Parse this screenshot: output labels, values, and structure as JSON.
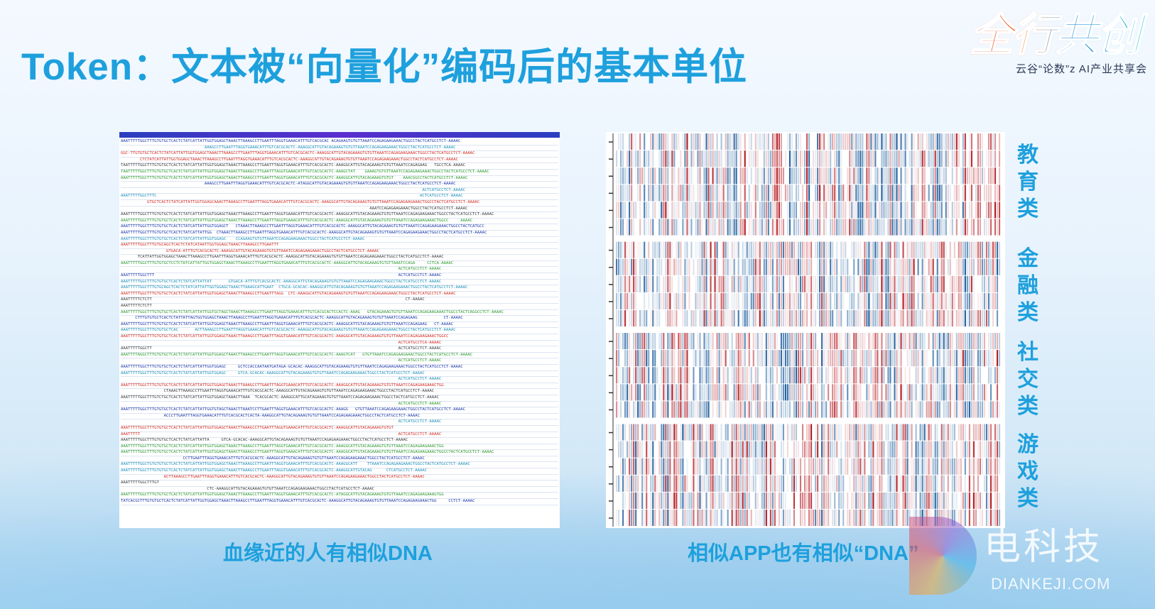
{
  "slide": {
    "title": "Token：文本被“向量化”编码后的基本单位"
  },
  "logo": {
    "main": "全行共创",
    "sub": "云谷“论数”z AI产业共享会"
  },
  "left_panel": {
    "caption": "血缘近的人有相似DNA",
    "sequence_lines": [
      "AAATTTTTGGCTTTGTGTGCTCACTCTATCATTATTGGTGGAGCTAAACTTAAAGCCTTGAATTTAGGTGAAACATTTGTCACGCAC ACAGAAGTGTGTTAAATCCAGAGAAGAAACTGGCCTACTCATGCCTCT-AAAAC",
      "                                   AAAGCCTTGAATTTAGGTGAAACATTTGTCACGCACTC-AAAGGCATTGTACAGAAAGTGTGTTAAATCCAGAGAAGAAACTGGCCTACTCATGCCTCT-AAAAC",
      "GGC-TTGTGTGCTCACTCTATCATTATTGGTGGAGCTAAACTTAAAGCCTTGAATTTAGGTGAAACATTTGTCACGCACTC-AAAGGCATTGTACAGAAAGTGTGTTAAATCCAGAGAAGAAACTGGCCTACTCATGCCTCT-AAAAC",
      "        CTCTATCATTATTGGTGGAGCTAAACTTAAAGCCTTGAATTTAGGTGAAACATTTGTCACGCACTC-AAAGGCATTGTACAGAAAGTGTGTTAAATCCAGAGAAGAAACTGGCCTACTCATGCCTCT-AAAAC",
      "TAATTTTTGGCTTTGTGTGCTCACTCTATCATTATTGGTGGAGCTAAACTTAAAGCCTTGAATTTAGGTGAAACATTTGTCACGCACTC-AAAGGCATTGTACAGAAAGTGTGTTAAATCCAGAGAAG   TGCCTCA-AAAAC",
      "TAATTTTTGGCTTTGTGTGCTCACTCTATCATTATTGGTGGAGCTAAACTTAAAGCCTTGAATTTAGGTGAAACATTTGTCACGCACTC-AAAGCTAT    GAAAGTGTGTTAAATCCAGAGAAGAAACTGGCCTACTCATGCCTCT-AAAAC",
      "AAATTTTTGGCTTTGTGTGCTCACTCTATCATTATTGGTGGAGCTAAACTTAAAGCCTTGAATTTAGGTGAAACATTTGTCACGCACTC-AAAGGCATTGTACAGAAAGTGTGT    AAACGGCCTACTCATGCCTCT-AAAAC",
      "                                   AAAGCCTTGAATTTAGGTGAAACATTTGTCACGCACTC-ATAGGCATTGTACAGAAAGTGTGTTAAATCCAGAGAAGAAACTGGCCTACTCATGCCTCT-AAAAC",
      "                                                                                                                              ACTCATGCCTCT-AAAAC",
      "AAATTTTTGGCTTTC                                                                                                              ACTCATGCCTCT-AAAAC",
      "           GTGCTCACTCTATCATTATTGGTGGAGCAAACTTAAAGCCTTGAATTTAGGTGAAACATTTGTCACGCACTC-AAAGGCATTGTACAGAAAGTGTGTTAAATCCAGAGAAGAAACTGGCCTACTCATGCCTCT-AAAAC",
      "                                                                                                        AAATCCAGAGAAGAAACTGGCCTACTCATGCCTCT-AAAAC",
      "AAATTTTTGGCTTTGTGTGCTCACTCTATCATTATTGGTGGAGCTAAACTTAAAGCCTTGAATTTAGGTGAAACATTTGTCACGCACTC-AAAGGCATTGTACAGAAAGTGTGTTAAATCCAGAGAAGAAACTGGCCTACTCATGCCTCT-AAAAC",
      "AAATTTTTGGCTTTGTGTGCTCACTCTATCATTATTGGTGGAGCTAAACTTAAAGCCTTGAATTTAGGTGAAACATTTGTCACGCACTC-AAAGGCATTGTACAGAAAGTGTGTTAAATCCAGAGAAGAAACTGGCC     AAAAC",
      "AAATTTTTGGCTTTGTGTGCTCACTCTATCATTATTGGTGGAGCT   CTAAACTTAAAGCCTTGAATTTAGGTGAAACATTTGTCACGCACTC-AAAGGCATTGTACAGAAAGTGTGTTAAATCCAGAGAAGAAACTGGCCTACTCATGCC",
      "AAATTTTTGGCTTTGTGTGCTCACTCTATCATTATTGG  CTAAACTTAAAGCCTTGAATTTAGGTGAAACATTTGTCACGCACTC-AAAGGCATTGTACAGAAAGTGTGTTAAATCCAGAGAAGAAACTGGCCTACTCATGCCTCT-AAAAC",
      "AAATTTTTGGCTTTGTGTGCTCACTCTATCATTATTGGTGGAGC    CCAGAAGTGTGTTAAATCCAGAGAAGAAACTGGCCTACTCATGCCTCT-AAAAC",
      "AAATTTTTGGCTTTGTGCAGCTCACTCTATCATAATTGGTGGAGCTAAACTTAAAGCCTTGAATTT",
      "                   GTGACA-ATTTGTCACGCACTC-AAAGGCATTGTACAGAAAGTGTGTTAAATCCAGAGAAGAAACTGGCCTACTCATGCCTCT-AAAAC",
      "       TCATTATTGGTGGAGCTAAACTTAAAGCCTTGAATTTAGGTGAAACATTTGTCACGCACTC-AAAGGCATTGTACAGAAAGTGTGTTAAATCCAGAGAAGAAACTGGCCTACTCATGCCTCT-AAAAC",
      "AAATTTTTGGCTTTGTGTGCTCCTCTATCATTATTGGTGGAGCTAAACTTAAAGCCTTGAATTTAGGTGAAACATTTGTCACGCACTC-AAAGGCATTGTACAGAAAGTGTGTTAAATCCAGA     CCTCA-AAAAC",
      "                                                                                                                    ACTCATGCCTCT-AAAAC",
      "AAATTTTTGGCTTT                                                                                                      ACTCATGCCTCT-AAAAC",
      "AAATTTTTGGCTTTGTGTGCTCACTCTATCATTATTAT       GTGACA-ATTTGTCACGCACTC-AAAGGCATTGTACAGAAAGTGTGTTAAATCCAGAGAAGAAACTGGCCTACTCATGCCTCT-AAAAC",
      "AAATTTTTGGCTTTGTGCAGCTCACTCTATCATTATTGGTGGAGCTAAACTTAAAGCATTGAAT  CTGCA-GCACAC-AAAGGCATTGTACAGAAAGTGTGTTAAATCCAGAGAAGAAACTGGCCTACTCATGCCTCT-AAAAC",
      "AAATTTTTGGCTTTGTGTGCTCACTCTATCATTATTGGTGGAGCTAAACTTAAAGCCTTGAATTTAGG  CTC-AAAGGCATTGTACAGAAAGTGTGTTAAATCCAGAGAAGAAACTGGCCTACTCATGCCTCT-AAAAC",
      "AAATTTTTCTCTT                                                                                                          CT-AAAAC",
      "AAATTTTTCTCTT",
      "AAATTTTTGGCTTTGTGTGCTCACTCTATCATTATTGGTGCTAGCTAAACTTAAAGCCTTGAATTTAGGTGAAACATTTGTCACGCACTCCACTC-AAAG   GTACAGAAAGTGTGTTAAATCCAGAGAAGAAACTGGCCTACTCAGGCCTCT-AAAAC",
      "      CTTTGTGTGCTCACTCTATTATTAGTGGTGGAGCTAAACTTAAAGCCTTGAATTTAGGTGAAACATTTGTCACGCACTC-AAAGGCATTGTACAGAAAGTGTGTTAAATCCAGAGAAG           CT-AAAAC",
      "AAATTTTTGGCTTTGTGTGCTCACTCTATCATTATTGGTGGAGCTAAACTTAAAGCCTTGAATTTAGGTGAAACATTTGTCACGCACTC-AAAGGCATTGTACAGAAAGTGTGTTAAATCCAGAGAAG   CT-AAAAC",
      "AAATTTTTGGCTTTGTGTGCTCAC       ACTTAAAGCCTTGAATTTAGGTGAAACATTTGTCACGCACTC-AAAGGCATTGTACAGAAAGTGTGTTAAATCCAGAGAAGAAACTGGCCTACTCATGCCTCT-AAAAC",
      "AAATTTTTGGCTTTGTGTGCTCACTCTATCATTATTGGTGGAGCTAAACTTAAAGCCTTGAATTTAGGTGAAACATTTGTCACGCACTC-AAAGGCATTGTACAGAAAGTGTGTTAAATCCAGAGAAGAAACTGGCC",
      "                                                                                                                    ACTCATGCCTCA-AAAAC",
      "AAATTTTTGGCTT                                                                                                       ACTCATGCCTCT-AAAAC",
      "AAATTTTAGGCTTTGTGTGCTCACTCTATCATTATTGGTGGAGCTAAACTTAAAGCCTTGAATTTAGGTGAAACATTTGTCACGCACTC-AAAGTCAT   GTGTTAAATCCAGAGAAGAAACTGGCCTACTCATGCCTCT-AAAAC",
      "                                                                                                                    ACTCATGCCTCT-AAAAC",
      "AAATTTTTGGCTTTGTGTGCTCACTCTATCATTATTGGTGGAGC     GCTCCACCAATAATGATAGA-GCACAC-AAAGGCATTGTACAGAAAGTGTGTTAAATCCAGAGAAGAAACTGGCCTACTCATGCCTCT-AAAAC",
      "AAATTTTTGGCTTTGTGTGCTCACTCTATCATTATTGGTGGAGC     GTCA-GCACAC-AAAGGCATTGTACAGAAAGTGTGTTAAATCCAGAGAAGAAACTGGCCTACTCATGCCTCT-AAAAC",
      "                                                                                                                    ACTCATGCCTCT-AAAAC",
      "AAATTTTTGGCTTTGTGTGCTCACTCTATCATTATTGGTGGAGCTAAACTTAAAGCCTTGAATTTAGGTGAAACATTTGTCACGCACTC-AAAGGCATTGTACAGAAAGTGTGTTAAATCCAGAGAAGAAACTGG",
      "                  CTAAACTTAAAGCCTTGAATTTAGGTGAAACATTTGTCACGCACTC-AAAGGCATTGTACAGAAAGTGTGTTAAATCCAGAGAAGAAACTGGCCTACTCATGCCTCT-AAAAC",
      "AAATTTTTGGCTTTGTCTGCTCACTCTATCATTATTGGTGGAGCTAAACTTAAA  TCACGCACTC-AAAGGCATTGCATAGAAAGTGTGTTAAATCCAGAGAAGAAACTGGCCTACTCATGCCTCT-AAAAC",
      "                                                                                                                    ACTCATGCCTCT-AAAAC",
      "AAATTTTTGGCTTTGTGTGCTCACTCTATCATTATTGGTGTAGCTAAACTTAAATCCTTGAATTTAGGTGAAACATTTGTCACGCACTC-AAAGG   GTGTTAAATCCAGAGAAGAAACTGGCCTACTCATGCCTCT-AAAAC",
      "                  ACCCTTGAATTTAGGTGAAACATTTGTCACGCACTCACTA-AAAGGCATTGTACAGAAAGTGTGTTAAATCCAGAGAAGAAACTGGCCTACTCATGCCTCT-AAAAC",
      "                                                                                                                    ACTCATGCCTCT-AAAAC",
      "AAATTTTTGGCTTTGTGTGCTCACTCTATCATTATTGGTGGAGCTAAACTTAAAGCCTTGAATTTAGGTGAAACATTTGTCACGCACTC-AAAGGCATTGTACAGAAAGTGTGT",
      "AAATTTTT                                                                                                            ACTCATGCCTCT-AAAAC",
      "AAATTTTTGGCTTTGTGTGCTCACTCTATCATTATTA     GTCA-GCACAC-AAAGGCATTGTACAGAAAGTGTGTTAAATCCAGAGAAGAAACTGGCCTACTCATGCCTCT-AAAAC",
      "AAATTTTTGGCTTTGTGTGCTCACTCTATCATTATTGGTGGAGCTAAACTTAAAGCCTTGAATTTAGGTGAAACATTTGTCACGCACTC-AAAGGCATTGTACAGAAAGTGTGTTAAATCCAGAGAAGAAACTGG",
      "AAATTTTTGGCTTTGTGTGCTCACTCTATCATTATTGGTGGAGCTAAACTTAAAGCCTTGAATTTAGGTGAAACATTTGTCACGCACTC-AAAGGCATTGTACAGAAAGTGTGTTAAATCCAGAGAAGAAACTGGCCTACTCATGCCTCT-AAAAC",
      "                          CCTTGAATTTAGGTGAAACATTTGTCACGCACTC-AAAGGCATTGTACAGAAAGTGTGTTAAATCCAGAGAAGAAACTGGCCTACTCATGCCTCT-AAAAC",
      "AAATTTTTGGCTGTGTGTGCTCACTCTATCATTATTGGTGGAGCTAAACTTAAAGCCTTGAATTTAGGTGAAACATTTGTCACGCACTC-AAAGGCATT    TTAAATCCAGAGAAGAAACTGGCCTACTCATGCCTCT-AAAAC",
      "AAATTTTTGGCTTTGTGTGCTCACTCTATCATTATTGGTGGAGCTAAACTTAAAGCCTTGAATTTAGGTGAAACATTTGTCACGCACTC-AAAGGCATTGTACAG      CTCATGCCTCT-AAAAC",
      "                  ACTTAAAGCCTTGAATTTAGGTGAAACATTTGTCACGCACTC-AAAGGCATTGTACAGAAAGTGTGTTAAATCCAGAGAAGAAACTGGCCTACTCATGCCTCT-AAAAC",
      "AAATTTTTGGCTTTGT",
      "                                    CTC-AAAGGCATTGTACAGAAAGTGTGTTAAATCCAGAGAAGAAACTGGCCTACTCATGCCTCT-AAAAC",
      "AAATTTTTGGCTTTGTGTGCTCACTCTATCATTATTGGTGGAGCTAAACTTAAAGCCTTGAATTTAGGTGAAACATTTGTCACGCACTC-ATAGGCATTGTACAGAAAGTGTGTTAAATCCAGAGAAGAAAGTGG",
      "TATCACGCTTTGTGTGCTCACTCTATCATTATTGGTGGAGCTAAACTTAAAGCCTTGAATTTAGGTGAAACATTTGTCACGCACTC-AAAGGCATTGTACAGAAAGTGTGTTAAATCCAGAGAAGAAACTGG     CCTCT-AAAAC"
    ],
    "colors": [
      "#1a36a8",
      "#d42a20",
      "#2a9a2a",
      "#1a8fb8",
      "#3a3a3a"
    ]
  },
  "right_panel": {
    "caption": "相似APP也有相似“DNA”",
    "categories": [
      {
        "label": "教育类",
        "rows": 6
      },
      {
        "label": "金融类",
        "rows": 5
      },
      {
        "label": "社交类",
        "rows": 5
      },
      {
        "label": "游戏类",
        "rows": 6
      }
    ],
    "colors": {
      "low": "#1f5f9e",
      "mid": "#ffffff",
      "high": "#b31b22"
    }
  },
  "watermark": {
    "cn": "电科技",
    "en": "DIANKEJI.COM"
  }
}
